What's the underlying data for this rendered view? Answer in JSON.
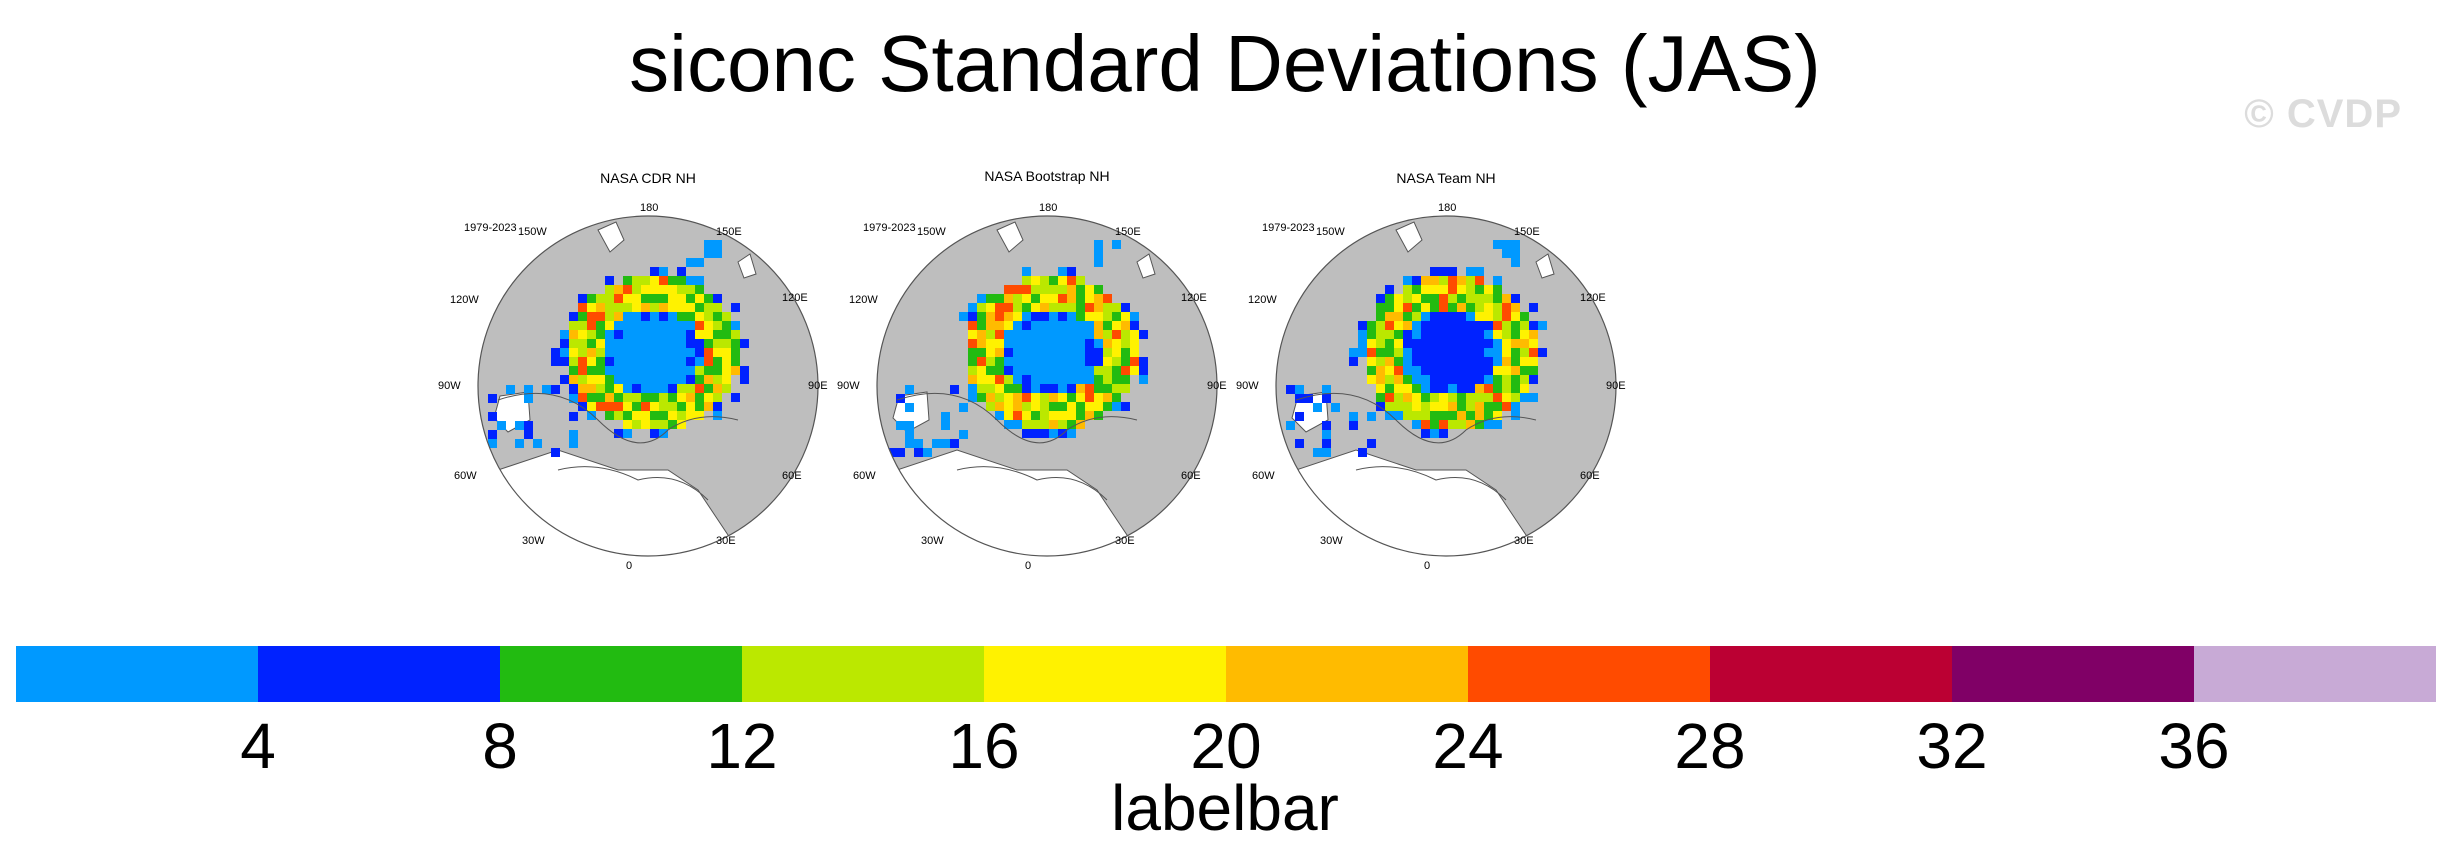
{
  "title": "siconc Standard Deviations (JAS)",
  "watermark": "© CVDP",
  "panels": [
    {
      "title": "NASA CDR NH",
      "period": "1979-2023",
      "lon_labels": {
        "l180": "180",
        "l150w": "150W",
        "l150e": "150E",
        "l120w": "120W",
        "l120e": "120E",
        "l90w": "90W",
        "l90e": "90E",
        "l60w": "60W",
        "l60e": "60E",
        "l30w": "30W",
        "l30e": "30E",
        "l0": "0"
      }
    },
    {
      "title": "NASA Bootstrap NH",
      "period": "1979-2023",
      "lon_labels": {
        "l180": "180",
        "l150w": "150W",
        "l150e": "150E",
        "l120w": "120W",
        "l120e": "120E",
        "l90w": "90W",
        "l90e": "90E",
        "l60w": "60W",
        "l60e": "60E",
        "l30w": "30W",
        "l30e": "30E",
        "l0": "0"
      }
    },
    {
      "title": "NASA Team NH",
      "period": "1979-2023",
      "lon_labels": {
        "l180": "180",
        "l150w": "150W",
        "l150e": "150E",
        "l120w": "120W",
        "l120e": "120E",
        "l90w": "90W",
        "l90e": "90E",
        "l60w": "60W",
        "l60e": "60E",
        "l30w": "30W",
        "l30e": "30E",
        "l0": "0"
      }
    }
  ],
  "labelbar": {
    "title": "labelbar",
    "colors": [
      "#0099ff",
      "#0022ff",
      "#22bb11",
      "#bbe800",
      "#fff200",
      "#ffbb00",
      "#ff4b00",
      "#bb0033",
      "#800066",
      "#c8aad6"
    ],
    "ticks": [
      "4",
      "8",
      "12",
      "16",
      "20",
      "24",
      "28",
      "32",
      "36"
    ]
  },
  "map_colors": {
    "land": "#bebebe",
    "ocean": "#ffffff",
    "coast": "#555555"
  }
}
